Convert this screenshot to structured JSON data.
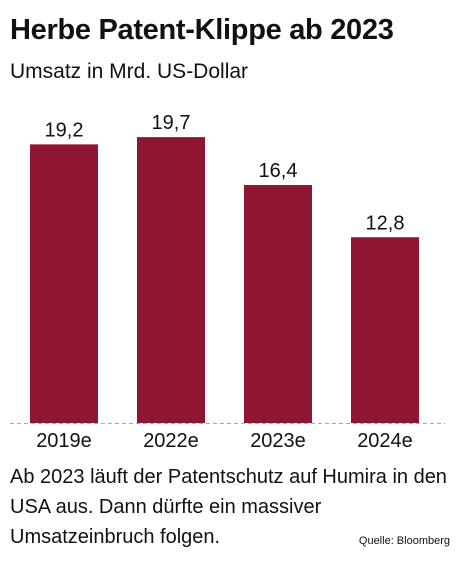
{
  "title": "Herbe Patent-Klippe ab 2023",
  "subtitle": "Umsatz in Mrd. US-Dollar",
  "caption": "Ab 2023 läuft der Patentschutz auf Humira in den USA aus. Dann dürfte ein massiver Umsatzeinbruch folgen.",
  "source": "Quelle: Bloomberg",
  "colors": {
    "bar": "#8e1632",
    "text": "#111111",
    "baseline": "#aaaaaa"
  },
  "chart_data": {
    "type": "bar",
    "categories": [
      "2019e",
      "2022e",
      "2023e",
      "2024e"
    ],
    "values": [
      19.2,
      19.7,
      16.4,
      12.8
    ],
    "value_labels": [
      "19,2",
      "19,7",
      "16,4",
      "12,8"
    ],
    "title": "Herbe Patent-Klippe ab 2023",
    "subtitle": "Umsatz in Mrd. US-Dollar",
    "ylim": [
      0,
      21.5
    ],
    "grid": false,
    "legend": "none"
  }
}
